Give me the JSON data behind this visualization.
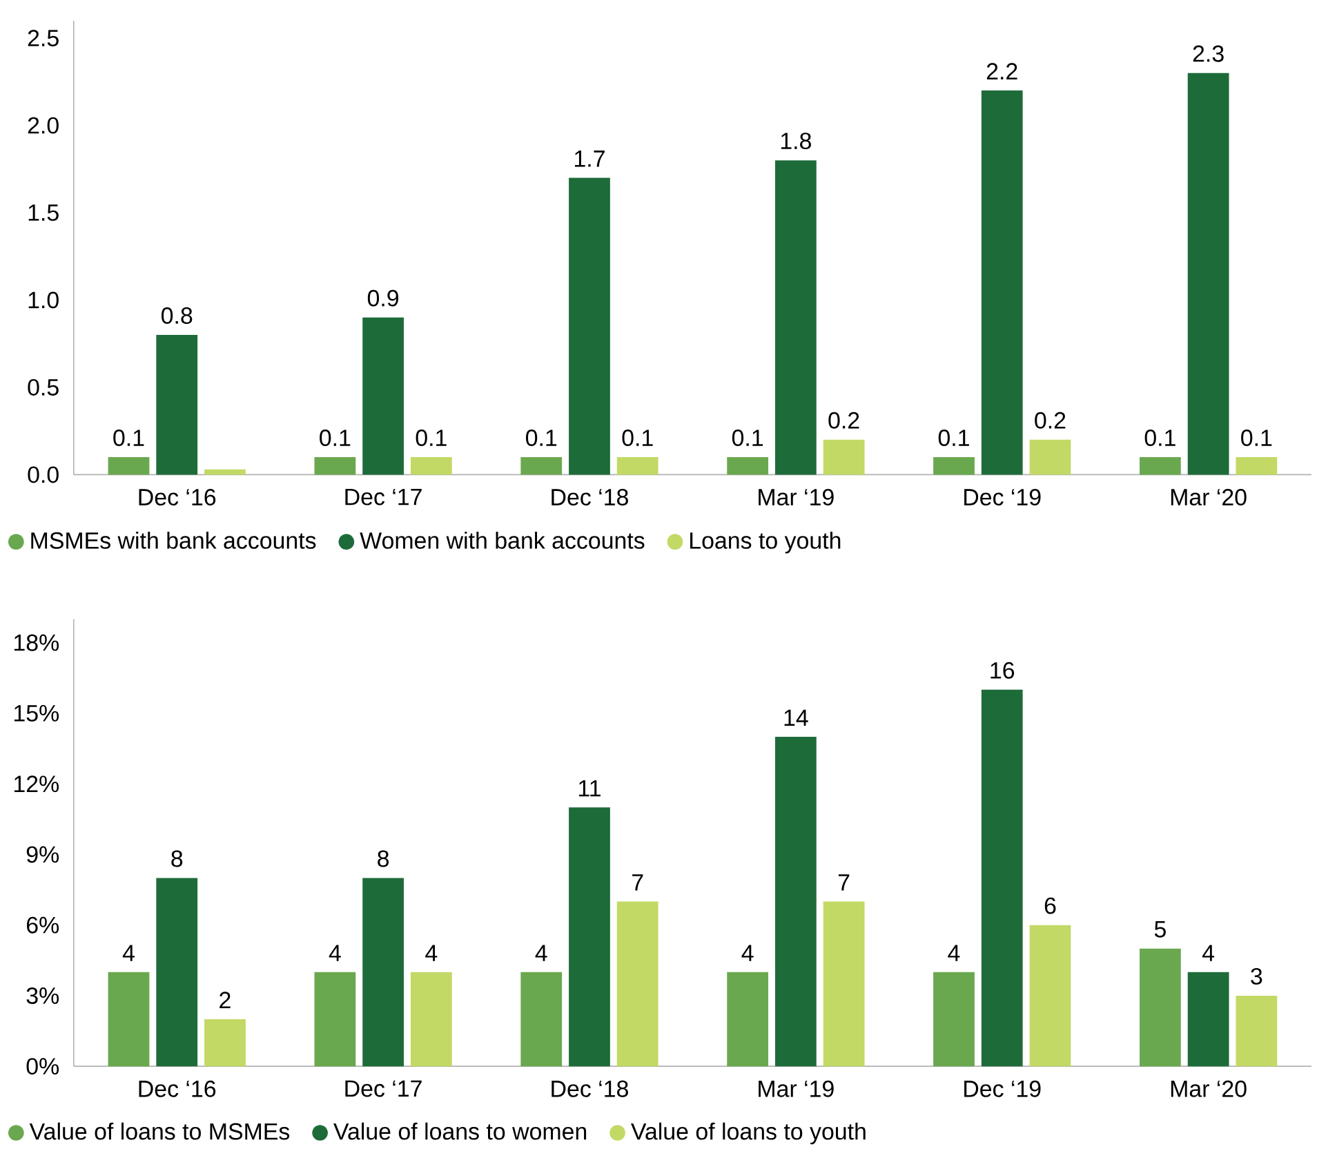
{
  "chart_data": [
    {
      "type": "bar",
      "categories": [
        "Dec ‘16",
        "Dec ‘17",
        "Dec ‘18",
        "Mar ‘19",
        "Dec ‘19",
        "Mar ‘20"
      ],
      "ylim": [
        0,
        2.6
      ],
      "yticks": [
        {
          "value": 0,
          "label": "0.0"
        },
        0.5,
        {
          "value": 1,
          "label": "1.0"
        },
        1.5,
        {
          "value": 2,
          "label": "2.0"
        },
        2.5
      ],
      "legend": "bottom left",
      "series": [
        {
          "name": "MSMEs with bank accounts",
          "color": "#6aa84f",
          "values": [
            0.1,
            0.1,
            0.1,
            0.1,
            0.1,
            0.1
          ],
          "value_labels": [
            "0.1",
            "0.1",
            "0.1",
            "0.1",
            "0.1",
            "0.1"
          ]
        },
        {
          "name": "Women with bank accounts",
          "color": "#1e6b3a",
          "values": [
            0.8,
            0.9,
            1.7,
            1.8,
            2.2,
            2.3
          ],
          "value_labels": [
            "0.8",
            "0.9",
            "1.7",
            "1.8",
            "2.2",
            "2.3"
          ]
        },
        {
          "name": "Loans to youth",
          "color": "#c2d965",
          "values": [
            0.03,
            0.1,
            0.1,
            0.2,
            0.2,
            0.1
          ],
          "value_labels": [
            null,
            "0.1",
            "0.1",
            "0.2",
            "0.2",
            "0.1"
          ]
        }
      ]
    },
    {
      "type": "bar",
      "categories": [
        "Dec ‘16",
        "Dec ‘17",
        "Dec ‘18",
        "Mar ‘19",
        "Dec ‘19",
        "Mar ‘20"
      ],
      "ylim": [
        0,
        19
      ],
      "yticks": [
        {
          "value": 0,
          "label": "0%"
        },
        {
          "value": 3,
          "label": "3%"
        },
        {
          "value": 6,
          "label": "6%"
        },
        {
          "value": 9,
          "label": "9%"
        },
        {
          "value": 12,
          "label": "12%"
        },
        {
          "value": 15,
          "label": "15%"
        },
        {
          "value": 18,
          "label": "18%"
        }
      ],
      "legend": "bottom left",
      "data_labels": true,
      "series": [
        {
          "name": "Value of loans to MSMEs",
          "color": "#6aa84f",
          "values": [
            4,
            4,
            4,
            4,
            4,
            5
          ]
        },
        {
          "name": "Value of loans to women",
          "color": "#1e6b3a",
          "values": [
            8,
            8,
            11,
            14,
            16,
            4
          ]
        },
        {
          "name": "Value of loans to youth",
          "color": "#c2d965",
          "values": [
            2,
            4,
            7,
            7,
            6,
            3
          ]
        }
      ]
    }
  ]
}
